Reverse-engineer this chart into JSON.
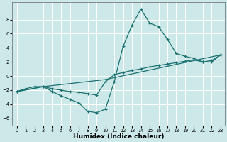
{
  "xlabel": "Humidex (Indice chaleur)",
  "background_color": "#cce8e8",
  "grid_color": "#ffffff",
  "line_color": "#1a7070",
  "xlim": [
    -0.5,
    23.5
  ],
  "ylim": [
    -7.0,
    10.5
  ],
  "xticks": [
    0,
    1,
    2,
    3,
    4,
    5,
    6,
    7,
    8,
    9,
    10,
    11,
    12,
    13,
    14,
    15,
    16,
    17,
    18,
    19,
    20,
    21,
    22,
    23
  ],
  "yticks": [
    -6,
    -4,
    -2,
    0,
    2,
    4,
    6,
    8
  ],
  "curve1_x": [
    0,
    1,
    2,
    3,
    4,
    5,
    6,
    7,
    8,
    9,
    10,
    11,
    12,
    13,
    14,
    15,
    16,
    17,
    18,
    19,
    20,
    21,
    22,
    23
  ],
  "curve1_y": [
    -2.2,
    -1.8,
    -1.5,
    -1.5,
    -2.2,
    -2.8,
    -3.3,
    -3.8,
    -5.0,
    -5.2,
    -4.7,
    -0.8,
    4.2,
    7.2,
    9.5,
    7.5,
    7.0,
    5.2,
    3.2,
    2.8,
    2.5,
    2.0,
    2.2,
    3.0
  ],
  "curve2_x": [
    0,
    3,
    4,
    5,
    6,
    7,
    8,
    9,
    10,
    11,
    12,
    13,
    14,
    15,
    16,
    17,
    18,
    19,
    20,
    21,
    22,
    23
  ],
  "curve2_y": [
    -2.2,
    -1.5,
    -1.8,
    -2.0,
    -2.2,
    -2.3,
    -2.5,
    -2.7,
    -0.8,
    0.2,
    0.5,
    0.8,
    1.0,
    1.3,
    1.5,
    1.7,
    1.9,
    2.1,
    2.3,
    2.0,
    2.0,
    3.0
  ],
  "curve3_x": [
    0,
    3,
    10,
    23
  ],
  "curve3_y": [
    -2.2,
    -1.5,
    -0.5,
    3.0
  ]
}
